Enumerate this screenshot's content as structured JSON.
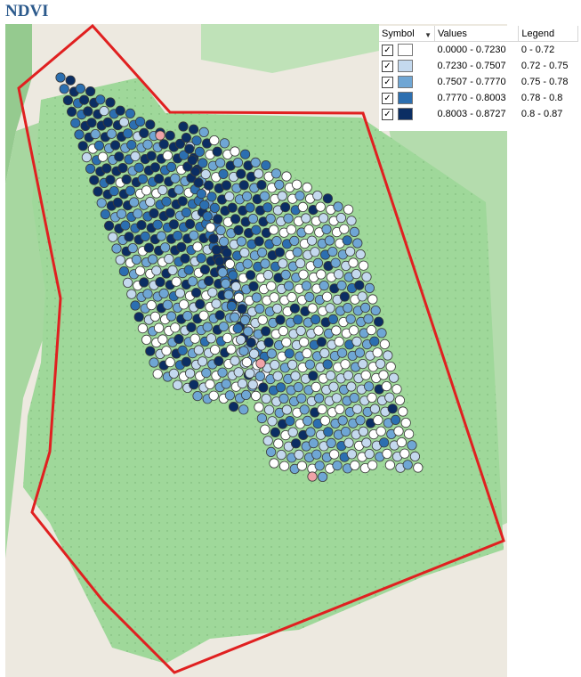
{
  "title": "NDVI",
  "legend": {
    "headers": {
      "symbol": "Symbol",
      "values": "Values",
      "legend": "Legend"
    },
    "rows": [
      {
        "checked": "✓",
        "color": "#ffffff",
        "values": "0.0000 - 0.7230",
        "label": "0 - 0.72"
      },
      {
        "checked": "✓",
        "color": "#c4d9ee",
        "values": "0.7230 - 0.7507",
        "label": "0.72 - 0.75"
      },
      {
        "checked": "✓",
        "color": "#6fa6d4",
        "values": "0.7507 - 0.7770",
        "label": "0.75 - 0.78"
      },
      {
        "checked": "✓",
        "color": "#2c6fb0",
        "values": "0.7770 - 0.8003",
        "label": "0.78 - 0.8"
      },
      {
        "checked": "✓",
        "color": "#0b2e63",
        "values": "0.8003 - 0.8727",
        "label": "0.8 - 0.87"
      }
    ]
  },
  "map": {
    "field_color": "#9fd89a",
    "background_color": "#ede9e0",
    "boundary_color": "#e02020",
    "outlier_color": "#f0a3a8"
  }
}
